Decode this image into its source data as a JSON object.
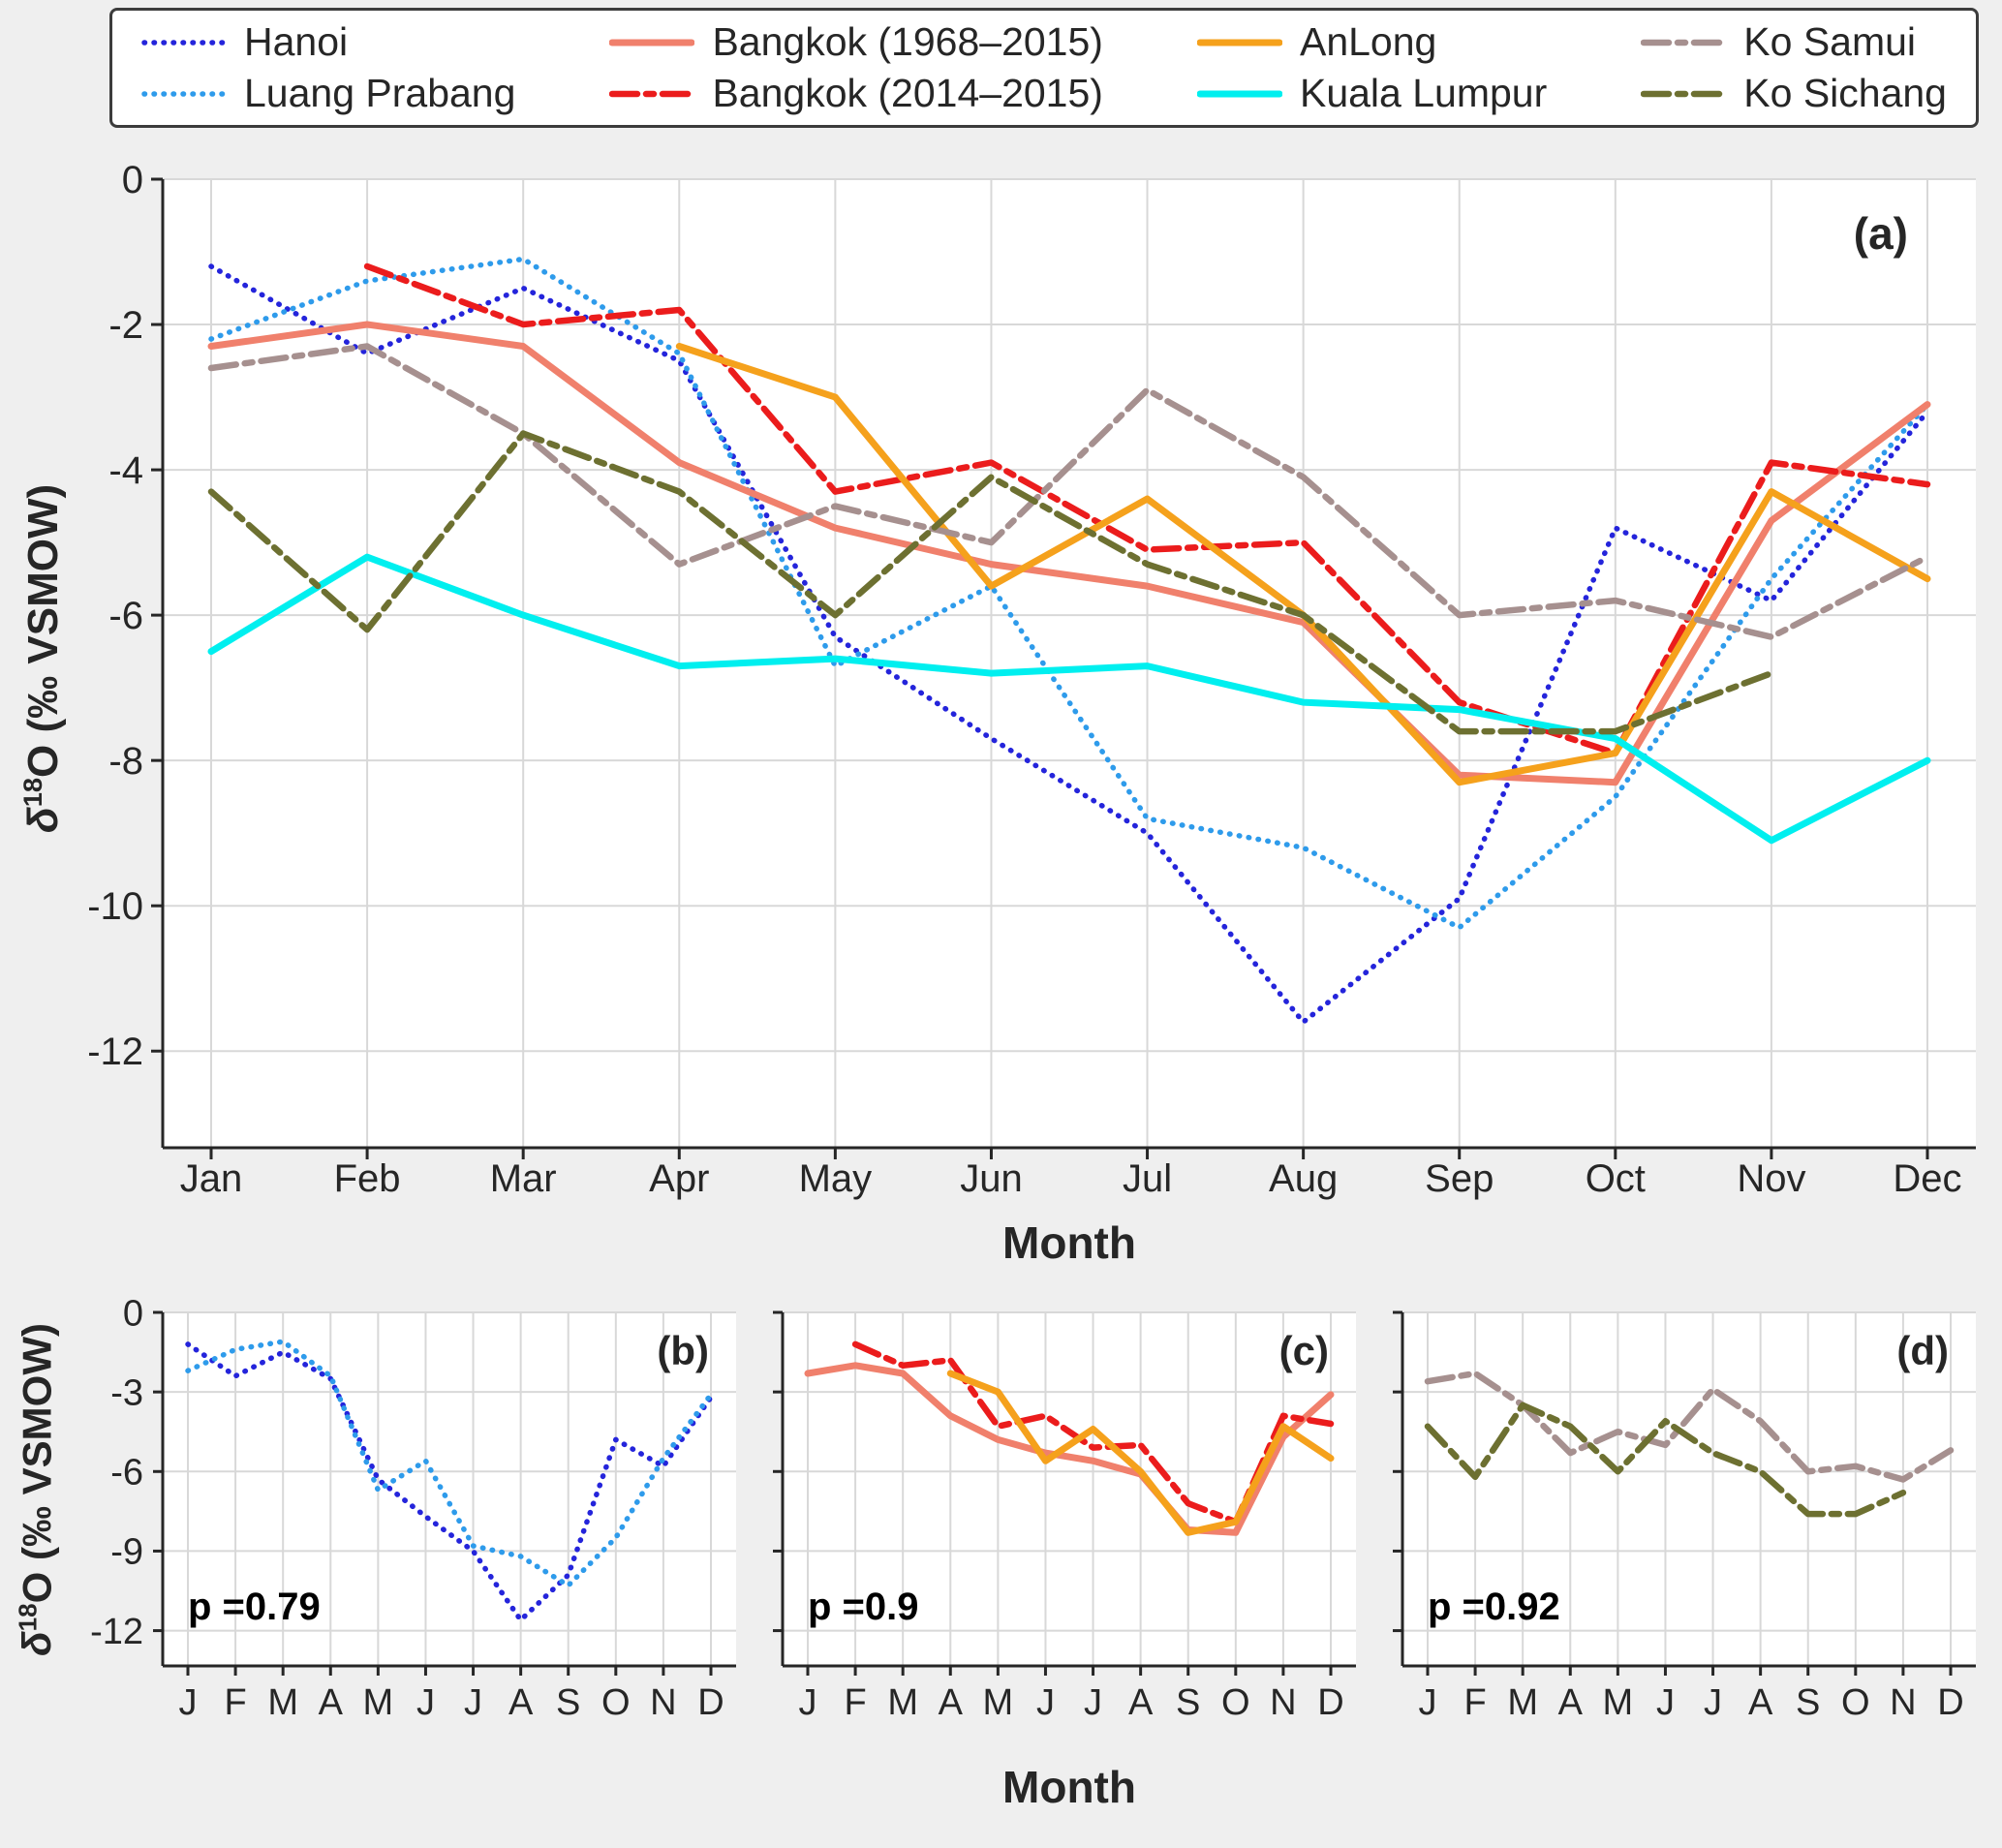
{
  "figure": {
    "background": "#EFEFEF",
    "plot_background": "#FFFFFF",
    "grid_color": "#D8D8D8",
    "axis_color": "#262626"
  },
  "ylabel_parts": {
    "delta": "δ",
    "exp": "18",
    "rest": "O (‰ VSMOW)"
  },
  "legend": {
    "columns": [
      [
        "hanoi",
        "luang_prabang"
      ],
      [
        "bangkok_1968_2015",
        "bangkok_2014_2015"
      ],
      [
        "anlong",
        "kuala_lumpur"
      ],
      [
        "ko_samui",
        "ko_sichang"
      ]
    ]
  },
  "chart_data": {
    "type": "line",
    "title": "",
    "xlabel": "Month",
    "ylabel": "δ18O (‰ VSMOW)",
    "ylim": [
      -13.33,
      0
    ],
    "months": [
      "Jan",
      "Feb",
      "Mar",
      "Apr",
      "May",
      "Jun",
      "Jul",
      "Aug",
      "Sep",
      "Oct",
      "Nov",
      "Dec"
    ],
    "month_letters": [
      "J",
      "F",
      "M",
      "A",
      "M",
      "J",
      "J",
      "A",
      "S",
      "O",
      "N",
      "D"
    ],
    "series": [
      {
        "key": "hanoi",
        "label": "Hanoi",
        "color": "#2424DB",
        "style": "dotted",
        "width": 5.5,
        "values": [
          -1.2,
          -2.4,
          -1.5,
          -2.5,
          -6.3,
          -7.7,
          -9.0,
          -11.6,
          -9.9,
          -4.8,
          -5.8,
          -3.2
        ]
      },
      {
        "key": "luang_prabang",
        "label": "Luang Prabang",
        "color": "#2E9BEB",
        "style": "dotted",
        "width": 5.5,
        "values": [
          -2.2,
          -1.4,
          -1.1,
          -2.4,
          -6.7,
          -5.6,
          -8.8,
          -9.2,
          -10.3,
          -8.5,
          -5.5,
          -3.1
        ]
      },
      {
        "key": "bangkok_1968_2015",
        "label": "Bangkok (1968–2015)",
        "color": "#F0806C",
        "style": "solid",
        "width": 7,
        "values": [
          -2.3,
          -2.0,
          -2.3,
          -3.9,
          -4.8,
          -5.3,
          -5.6,
          -6.1,
          -8.2,
          -8.3,
          -4.7,
          -3.1
        ]
      },
      {
        "key": "bangkok_2014_2015",
        "label": "Bangkok (2014–2015)",
        "color": "#EB1C1C",
        "style": "dashdot",
        "width": 6.5,
        "values": [
          null,
          -1.2,
          -2.0,
          -1.8,
          -4.3,
          -3.9,
          -5.1,
          -5.0,
          -7.2,
          -7.9,
          -3.9,
          -4.2
        ]
      },
      {
        "key": "anlong",
        "label": "AnLong",
        "color": "#F5A11C",
        "style": "solid",
        "width": 7,
        "values": [
          null,
          null,
          null,
          -2.3,
          -3.0,
          -5.6,
          -4.4,
          -6.0,
          -8.3,
          -7.9,
          -4.3,
          -5.5
        ]
      },
      {
        "key": "kuala_lumpur",
        "label": "Kuala Lumpur",
        "color": "#00EFEF",
        "style": "solid",
        "width": 7,
        "values": [
          -6.5,
          -5.2,
          -6.0,
          -6.7,
          -6.6,
          -6.8,
          -6.7,
          -7.2,
          -7.3,
          -7.7,
          -9.1,
          -8.0
        ]
      },
      {
        "key": "ko_samui",
        "label": "Ko Samui",
        "color": "#A6908F",
        "style": "dashdot",
        "width": 6.5,
        "values": [
          -2.6,
          -2.3,
          -3.5,
          -5.3,
          -4.5,
          -5.0,
          -2.9,
          -4.1,
          -6.0,
          -5.8,
          -6.3,
          -5.2
        ]
      },
      {
        "key": "ko_sichang",
        "label": "Ko Sichang",
        "color": "#6D7031",
        "style": "dashdot",
        "width": 6.5,
        "values": [
          -4.3,
          -6.2,
          -3.5,
          -4.3,
          -6.0,
          -4.1,
          -5.3,
          -6.0,
          -7.6,
          -7.6,
          -6.8,
          null
        ]
      }
    ],
    "panels": [
      {
        "id": "a",
        "label": "(a)",
        "x_categories": "months",
        "yticks": [
          0,
          -2,
          -4,
          -6,
          -8,
          -10,
          -12
        ],
        "show_y_tick_labels": true,
        "series_keys": [
          "hanoi",
          "luang_prabang",
          "bangkok_1968_2015",
          "bangkok_2014_2015",
          "anlong",
          "kuala_lumpur",
          "ko_samui",
          "ko_sichang"
        ]
      },
      {
        "id": "b",
        "label": "(b)",
        "p_annotation": "p =0.79",
        "x_categories": "month_letters",
        "yticks": [
          0,
          -3,
          -6,
          -9,
          -12
        ],
        "show_y_tick_labels": true,
        "series_keys": [
          "hanoi",
          "luang_prabang"
        ]
      },
      {
        "id": "c",
        "label": "(c)",
        "p_annotation": "p =0.9",
        "x_categories": "month_letters",
        "yticks": [
          0,
          -3,
          -6,
          -9,
          -12
        ],
        "show_y_tick_labels": false,
        "series_keys": [
          "bangkok_1968_2015",
          "bangkok_2014_2015",
          "anlong"
        ]
      },
      {
        "id": "d",
        "label": "(d)",
        "p_annotation": "p =0.92",
        "x_categories": "month_letters",
        "yticks": [
          0,
          -3,
          -6,
          -9,
          -12
        ],
        "show_y_tick_labels": false,
        "series_keys": [
          "ko_samui",
          "ko_sichang"
        ]
      }
    ]
  }
}
